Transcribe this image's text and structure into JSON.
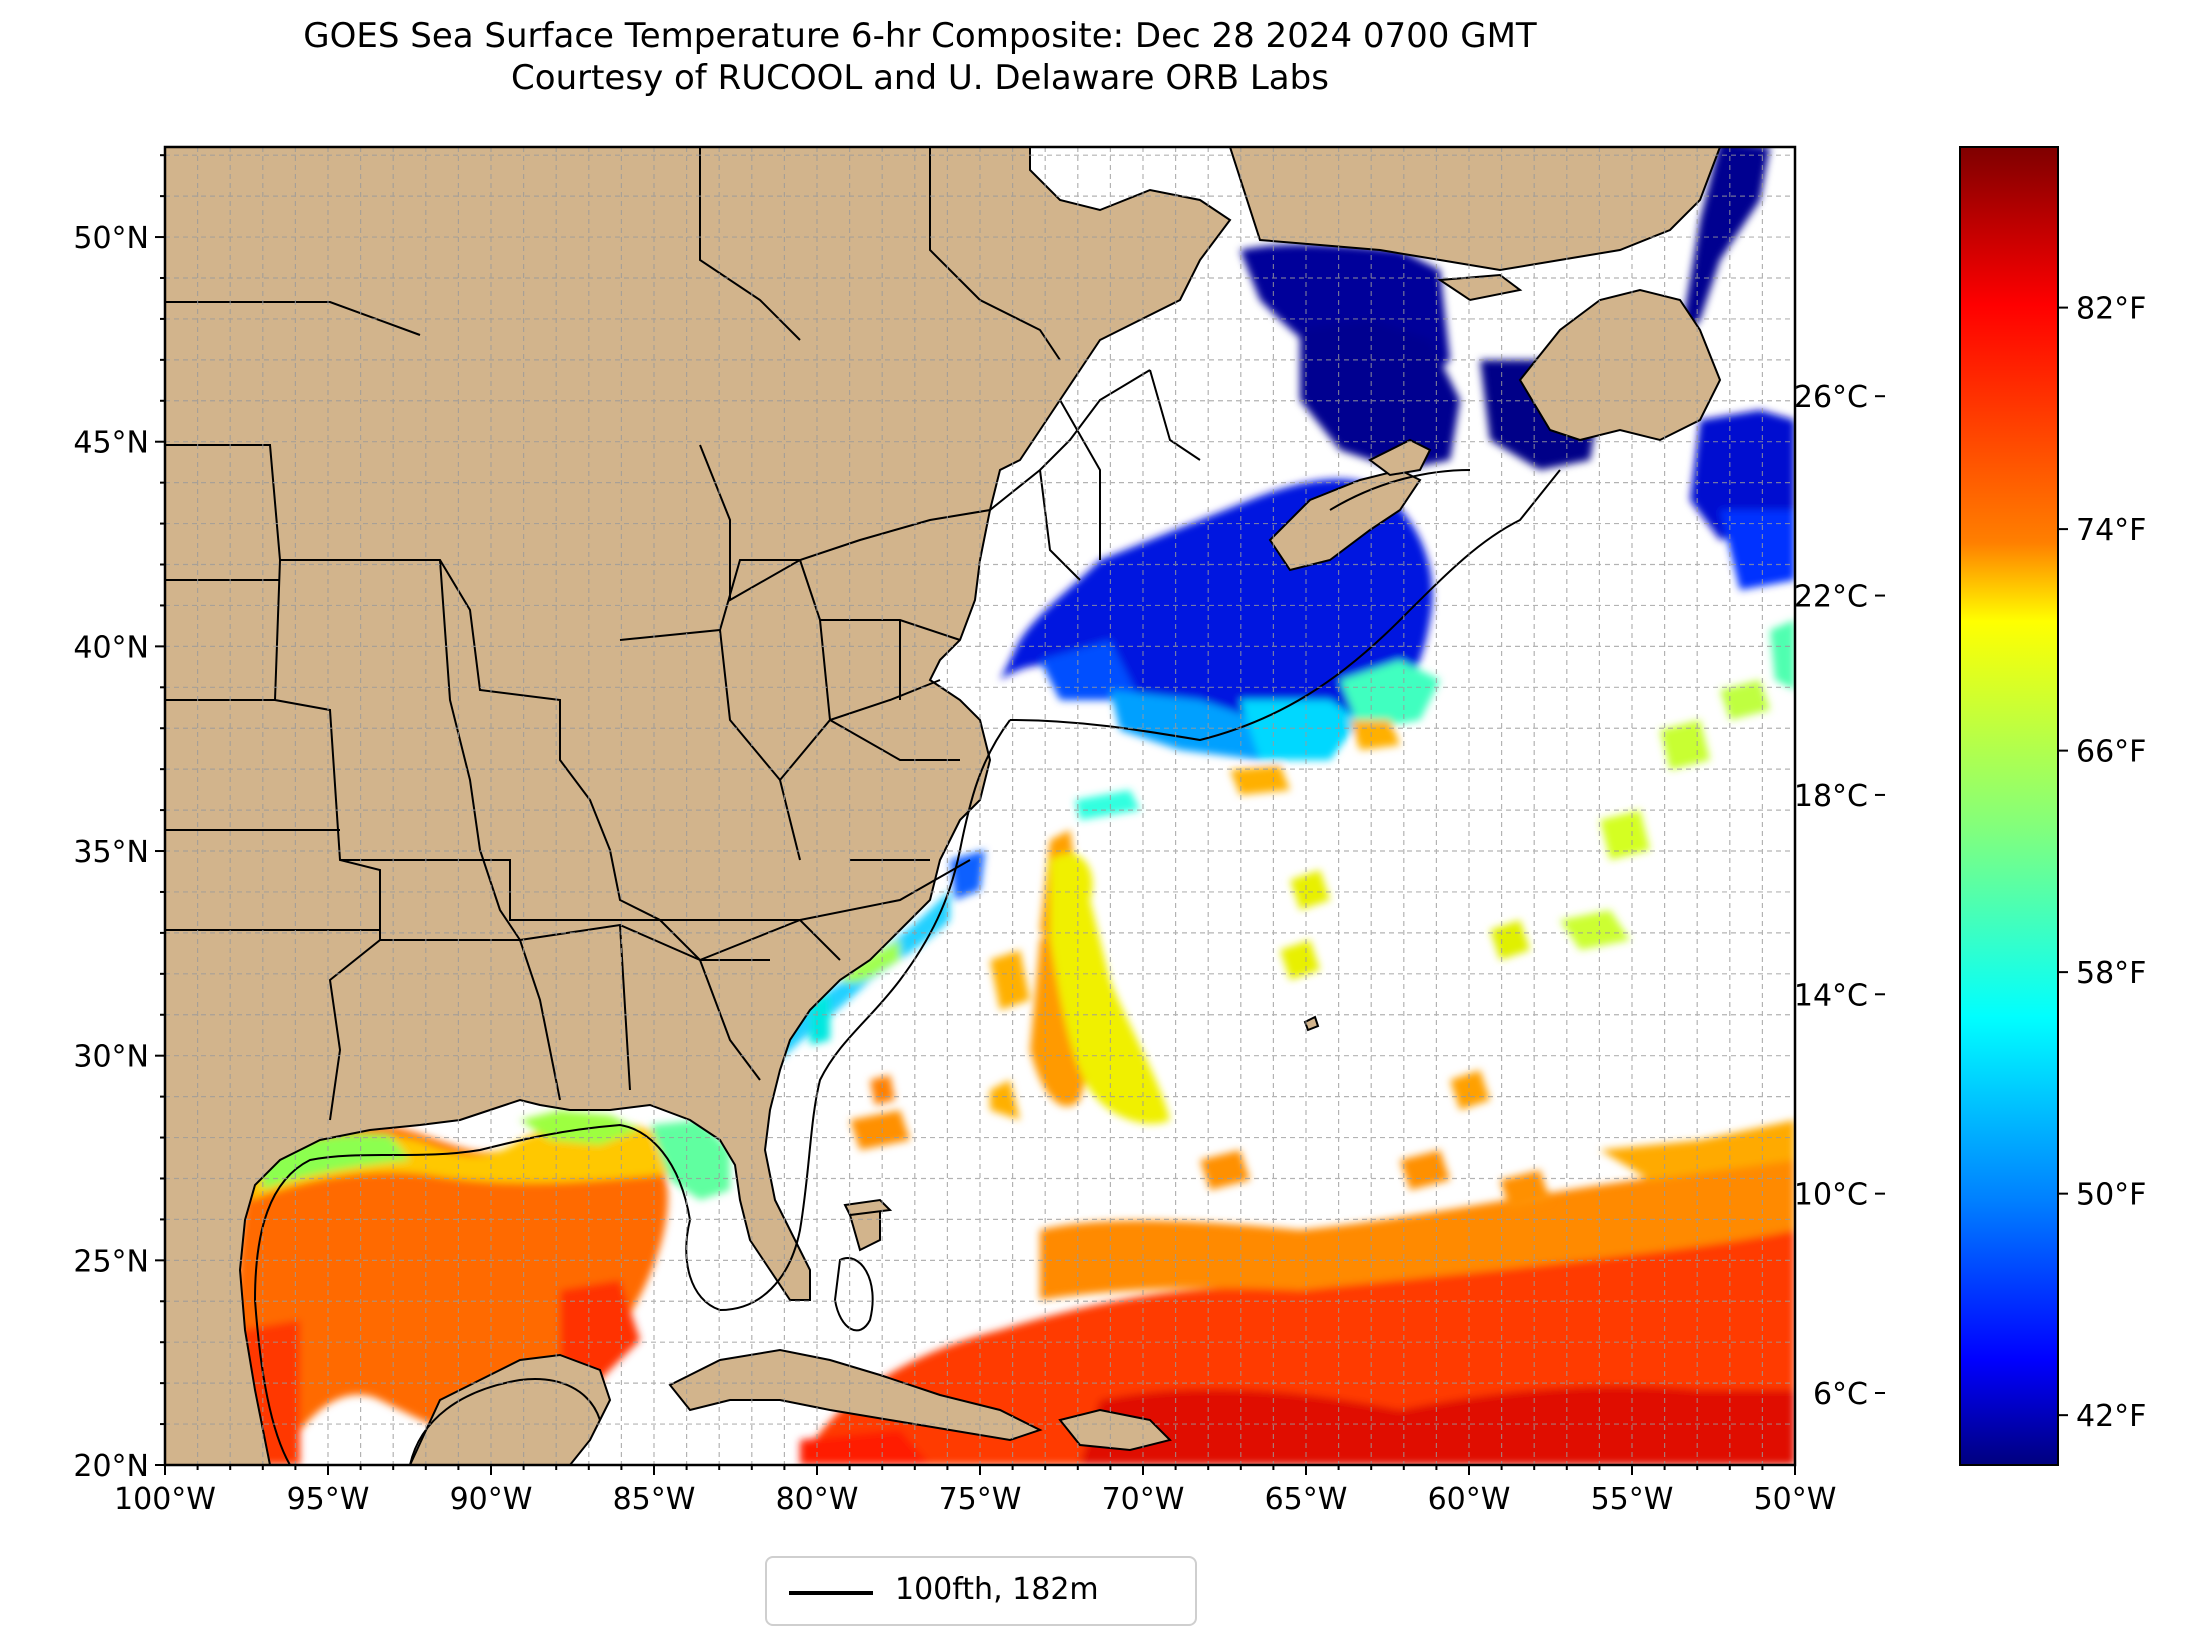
{
  "title": {
    "line1": "GOES Sea Surface Temperature 6-hr Composite: Dec 28 2024 0700 GMT",
    "line2": "Courtesy of RUCOOL and U. Delaware ORB Labs"
  },
  "map": {
    "lon_range": [
      -100,
      -50
    ],
    "lat_range": [
      20,
      52.2
    ],
    "lon_ticks": [
      "100°W",
      "95°W",
      "90°W",
      "85°W",
      "80°W",
      "75°W",
      "70°W",
      "65°W",
      "60°W",
      "55°W",
      "50°W"
    ],
    "lat_ticks": [
      "20°N",
      "25°N",
      "30°N",
      "35°N",
      "40°N",
      "45°N",
      "50°N"
    ],
    "grid": "dashed, every 1°",
    "land_color": "#d2b48c",
    "lake_color": "#9db8e6",
    "no_data_color": "#ffffff"
  },
  "colorbar": {
    "celsius_ticks": [
      "26°C",
      "22°C",
      "18°C",
      "14°C",
      "10°C",
      "6°C"
    ],
    "fahrenheit_ticks": [
      "82°F",
      "74°F",
      "66°F",
      "58°F",
      "50°F",
      "42°F"
    ],
    "colormap": "jet",
    "colors": [
      "#7f0000",
      "#ff0000",
      "#ff7f00",
      "#ffff00",
      "#7fff7f",
      "#00ffff",
      "#007fff",
      "#0000ff",
      "#00007f"
    ]
  },
  "legend": {
    "label": "100fth, 182m",
    "line_color": "#000000"
  }
}
